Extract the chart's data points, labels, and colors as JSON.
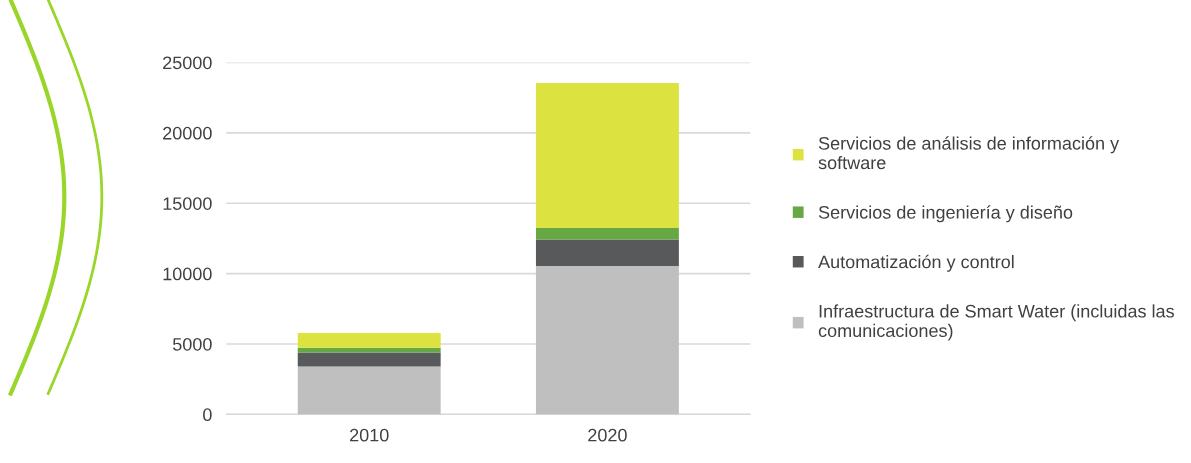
{
  "chart_data": {
    "type": "bar",
    "stacked": true,
    "categories": [
      "2010",
      "2020"
    ],
    "series": [
      {
        "name": "Infraestructura de Smart Water (incluidas las comunicaciones)",
        "color": "#bfbfbf",
        "values": [
          3400,
          10550
        ]
      },
      {
        "name": "Automatización y control",
        "color": "#58595b",
        "values": [
          1000,
          1870
        ]
      },
      {
        "name": "Servicios de ingeniería y diseño",
        "color": "#67a844",
        "values": [
          330,
          820
        ]
      },
      {
        "name": "Servicios de análisis de información y software",
        "color": "#dce341",
        "values": [
          1060,
          10310
        ]
      }
    ],
    "ylim": [
      0,
      25000
    ],
    "yticks": [
      0,
      5000,
      10000,
      15000,
      20000,
      25000
    ],
    "grid": "y",
    "legend": "right"
  }
}
